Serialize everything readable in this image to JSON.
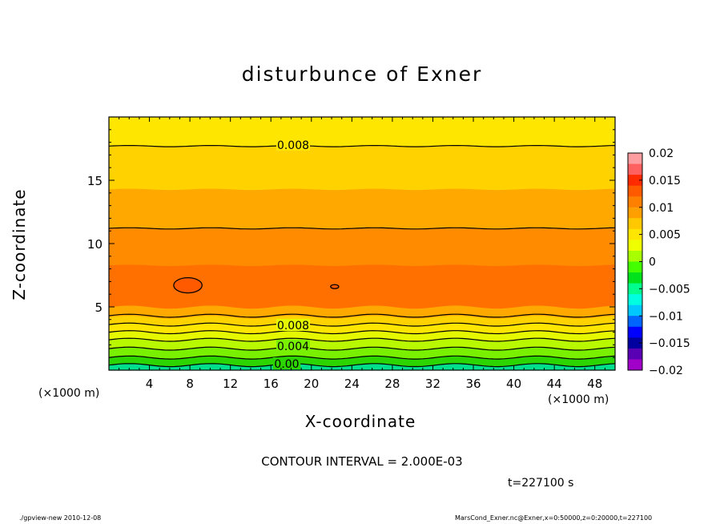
{
  "chart_data": {
    "type": "contour",
    "title": "disturbunce of Exner",
    "xlabel": "X-coordinate",
    "ylabel": "Z-coordinate",
    "x_units": "(×1000 m)",
    "x_units_right": "(×1000 m)",
    "xlim": [
      0,
      50
    ],
    "ylim": [
      0,
      20
    ],
    "x_ticks": [
      "4",
      "8",
      "12",
      "16",
      "20",
      "24",
      "28",
      "32",
      "36",
      "40",
      "44",
      "48"
    ],
    "y_ticks": [
      "5",
      "10",
      "15"
    ],
    "contour_labels": [
      "0.008",
      "0.008",
      "0.004",
      "0.00"
    ],
    "colorbar": {
      "levels": [
        "0.02",
        "0.015",
        "0.01",
        "0.005",
        "0",
        "−0.005",
        "−0.01",
        "−0.015",
        "−0.02"
      ],
      "colors": [
        "#ff9ea0",
        "#ff6060",
        "#ff2a00",
        "#ff5a00",
        "#ff8000",
        "#ffa000",
        "#ffc800",
        "#ffe600",
        "#f0ff00",
        "#a8ff00",
        "#44ff00",
        "#00e21c",
        "#00ff8c",
        "#00ffe0",
        "#00c8ff",
        "#0064ff",
        "#0000ff",
        "#0000a0",
        "#5a00b4",
        "#a000c8"
      ]
    },
    "bands": [
      {
        "z_bottom": 0.0,
        "z_top": 0.4,
        "value": -0.001
      },
      {
        "z_bottom": 0.4,
        "z_top": 1.0,
        "value": 0.001
      },
      {
        "z_bottom": 1.0,
        "z_top": 1.7,
        "value": 0.003
      },
      {
        "z_bottom": 1.7,
        "z_top": 2.4,
        "value": 0.004
      },
      {
        "z_bottom": 2.4,
        "z_top": 3.0,
        "value": 0.005
      },
      {
        "z_bottom": 3.0,
        "z_top": 3.6,
        "value": 0.006
      },
      {
        "z_bottom": 3.6,
        "z_top": 4.2,
        "value": 0.007
      },
      {
        "z_bottom": 4.2,
        "z_top": 5.0,
        "value": 0.009
      },
      {
        "z_bottom": 5.0,
        "z_top": 8.3,
        "value": 0.011
      },
      {
        "z_bottom": 8.3,
        "z_top": 11.2,
        "value": 0.01
      },
      {
        "z_bottom": 11.2,
        "z_top": 14.3,
        "value": 0.009
      },
      {
        "z_bottom": 14.3,
        "z_top": 17.7,
        "value": 0.0075
      },
      {
        "z_bottom": 17.7,
        "z_top": 20.0,
        "value": 0.006
      }
    ],
    "contour_lines_z": [
      0.4,
      1.0,
      1.7,
      2.4,
      3.0,
      3.6,
      4.3,
      11.2,
      17.7
    ],
    "closed_contours": [
      {
        "x": 7.8,
        "z": 6.7,
        "rx": 1.4,
        "rz": 0.6
      },
      {
        "x": 22.3,
        "z": 6.6,
        "rx": 0.4,
        "rz": 0.15
      }
    ]
  },
  "contour_interval": "CONTOUR INTERVAL = 2.000E-03",
  "time": "t=227100 s",
  "footer_left": "./gpview-new  2010-12-08",
  "footer_right": "MarsCond_Exner.nc@Exner,x=0:50000,z=0:20000,t=227100"
}
